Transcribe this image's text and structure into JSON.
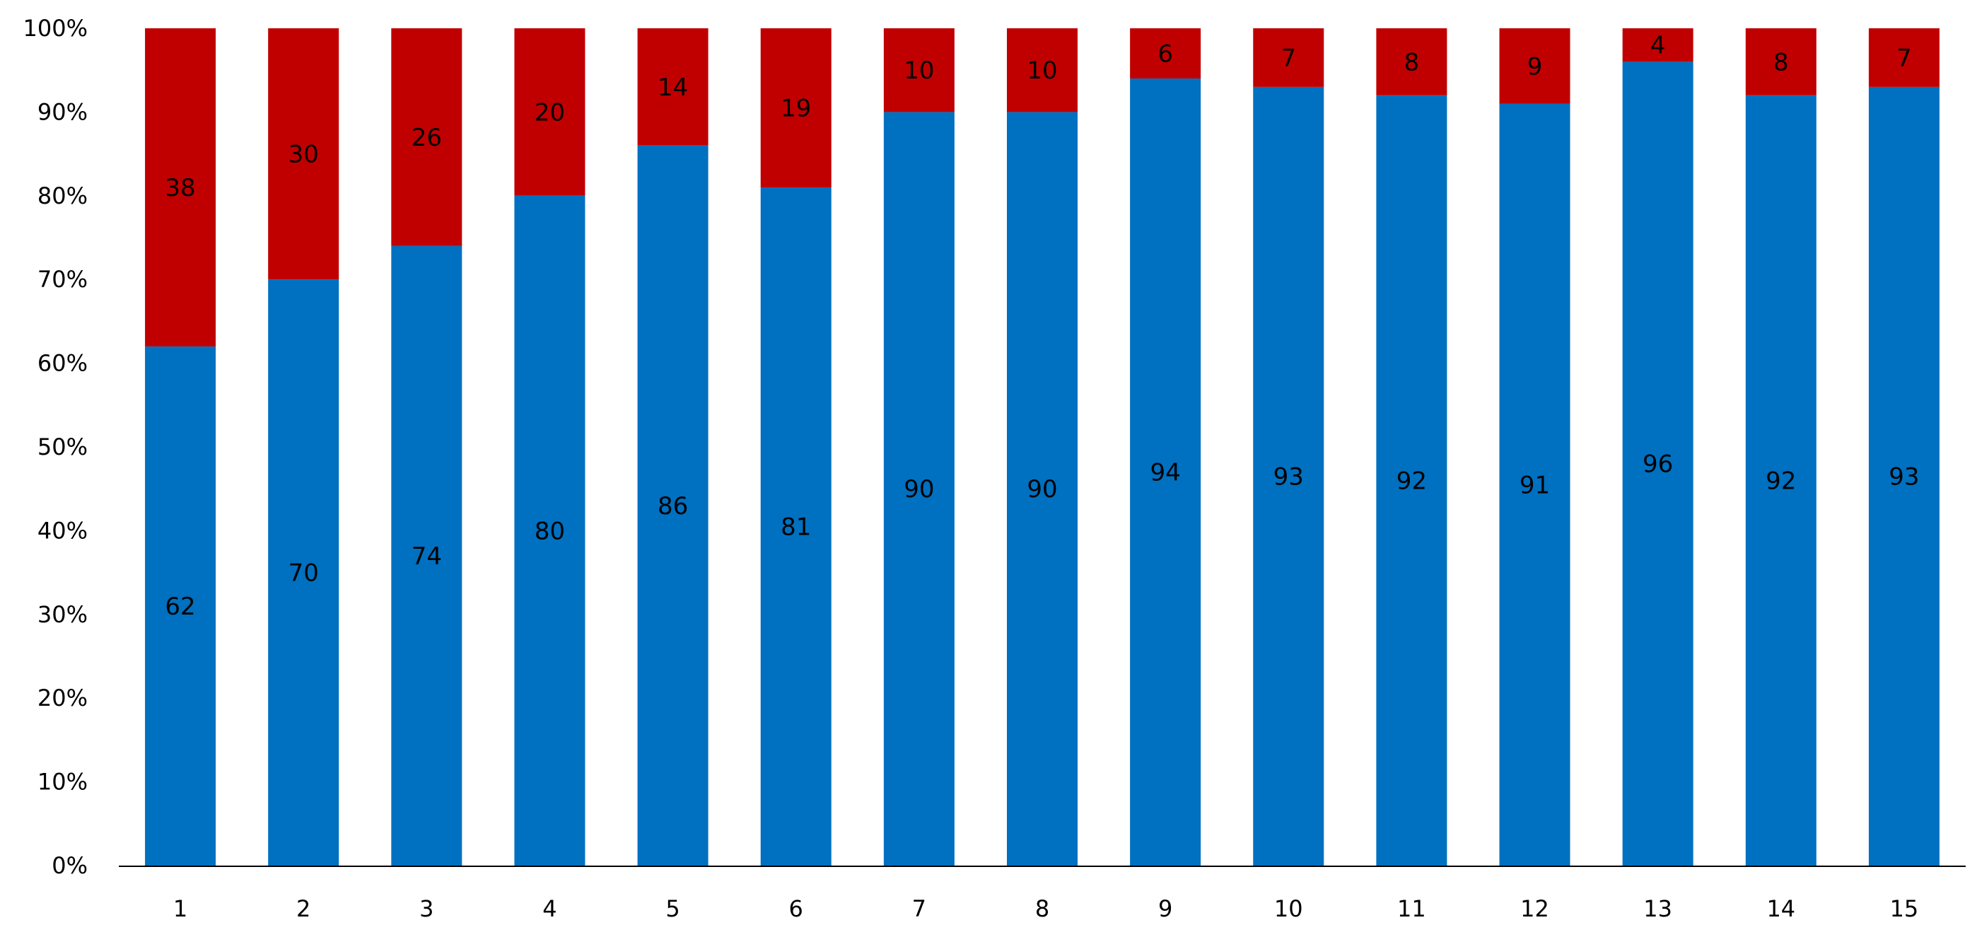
{
  "chart_data": {
    "type": "bar",
    "stacked": true,
    "percent_stacked": true,
    "title": "",
    "xlabel": "",
    "ylabel": "",
    "categories": [
      "1",
      "2",
      "3",
      "4",
      "5",
      "6",
      "7",
      "8",
      "9",
      "10",
      "11",
      "12",
      "13",
      "14",
      "15"
    ],
    "series": [
      {
        "values": [
          62,
          70,
          74,
          80,
          86,
          81,
          90,
          90,
          94,
          93,
          92,
          91,
          96,
          92,
          93
        ],
        "color": "#0070C0"
      },
      {
        "values": [
          38,
          30,
          26,
          20,
          14,
          19,
          10,
          10,
          6,
          7,
          8,
          9,
          4,
          8,
          7
        ],
        "color": "#C00000"
      }
    ],
    "ylim": [
      0,
      100
    ],
    "yticks": [
      "0%",
      "10%",
      "20%",
      "30%",
      "40%",
      "50%",
      "60%",
      "70%",
      "80%",
      "90%",
      "100%"
    ],
    "grid": false,
    "legend": "none",
    "data_labels": true
  }
}
